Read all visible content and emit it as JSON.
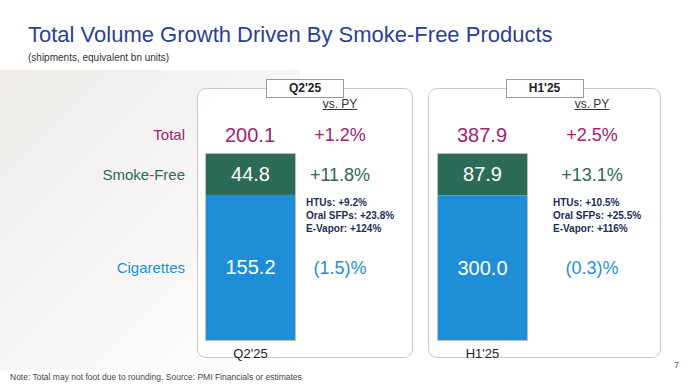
{
  "title": "Total Volume Growth Driven By Smoke-Free Products",
  "subtitle": "(shipments, equivalent bn units)",
  "note": "Note: Total may not foot due to rounding. Source: PMI Financials or estimates",
  "page_number": "7",
  "chart_data": [
    {
      "type": "bar",
      "stacked": true,
      "data_labels": true,
      "tick_labels": "x",
      "title": "Q2'25",
      "comparison_label": "vs. PY",
      "categories": [
        "Q2'25"
      ],
      "ylim": [
        0,
        200.1
      ],
      "yticks": [],
      "total": {
        "label": "Total",
        "value": 200.1,
        "change": "+1.2%",
        "color": "#a3236f"
      },
      "series": [
        {
          "name": "Smoke-Free",
          "color": "#2b6b57",
          "values": [
            44.8
          ],
          "value_labels": [
            "44.8"
          ],
          "change": "+11.8%",
          "details": [
            "HTUs: +9.2%",
            "Oral SFPs: +23.8%",
            "E-Vapor: +124%"
          ]
        },
        {
          "name": "Cigarettes",
          "color": "#1e8fd6",
          "values": [
            155.2
          ],
          "value_labels": [
            "155.2"
          ],
          "change": "(1.5)%"
        }
      ]
    },
    {
      "type": "bar",
      "stacked": true,
      "data_labels": true,
      "tick_labels": "x",
      "title": "H1'25",
      "comparison_label": "vs. PY",
      "categories": [
        "H1'25"
      ],
      "ylim": [
        0,
        387.9
      ],
      "yticks": [],
      "total": {
        "label": "Total",
        "value": 387.9,
        "change": "+2.5%",
        "color": "#a3236f"
      },
      "series": [
        {
          "name": "Smoke-Free",
          "color": "#2b6b57",
          "values": [
            87.9
          ],
          "value_labels": [
            "87.9"
          ],
          "change": "+13.1%",
          "details": [
            "HTUs: +10.5%",
            "Oral SFPs: +25.5%",
            "E-Vapor: +116%"
          ]
        },
        {
          "name": "Cigarettes",
          "color": "#1e8fd6",
          "values": [
            300.0
          ],
          "value_labels": [
            "300.0"
          ],
          "change": "(0.3)%"
        }
      ]
    }
  ]
}
